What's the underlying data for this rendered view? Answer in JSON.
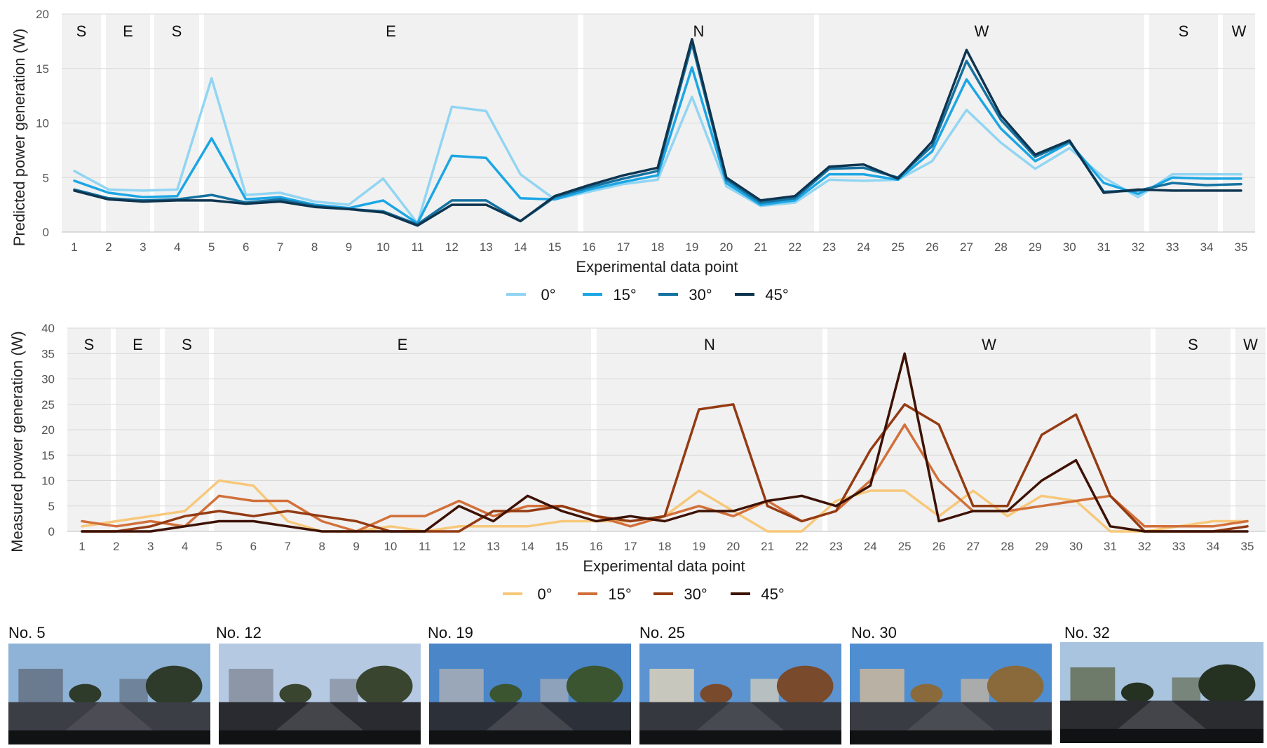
{
  "chart_data": [
    {
      "type": "line",
      "title": "",
      "xlabel": "Experimental data point",
      "ylabel": "Predicted power generation (W)",
      "ylim": [
        0,
        20
      ],
      "yticks": [
        "0",
        "5",
        "10",
        "15",
        "20"
      ],
      "grid": true,
      "legend": "bottom-center",
      "x": [
        "1",
        "2",
        "3",
        "4",
        "5",
        "6",
        "7",
        "8",
        "9",
        "10",
        "11",
        "12",
        "13",
        "14",
        "15",
        "16",
        "17",
        "18",
        "19",
        "20",
        "21",
        "22",
        "23",
        "24",
        "25",
        "26",
        "27",
        "28",
        "29",
        "30",
        "31",
        "32",
        "33",
        "34",
        "35"
      ],
      "series": [
        {
          "name": "0°",
          "color": "#92d5f3",
          "values": [
            5.6,
            3.9,
            3.8,
            3.9,
            14.1,
            3.4,
            3.6,
            2.8,
            2.5,
            4.9,
            0.8,
            11.5,
            11.1,
            5.3,
            3.0,
            3.7,
            4.4,
            4.8,
            12.4,
            4.2,
            2.4,
            2.7,
            4.8,
            4.7,
            4.8,
            6.5,
            11.2,
            8.2,
            5.8,
            7.7,
            5.0,
            3.2,
            5.3,
            5.3,
            5.3
          ]
        },
        {
          "name": "15°",
          "color": "#1ca6e4",
          "values": [
            4.7,
            3.6,
            3.2,
            3.3,
            8.6,
            3.0,
            3.2,
            2.5,
            2.2,
            2.9,
            0.8,
            7.0,
            6.8,
            3.1,
            3.0,
            3.9,
            4.6,
            5.2,
            15.1,
            4.5,
            2.5,
            2.9,
            5.3,
            5.3,
            4.8,
            7.4,
            14.0,
            9.5,
            6.5,
            8.2,
            4.5,
            3.5,
            5.0,
            4.9,
            4.9
          ]
        },
        {
          "name": "30°",
          "color": "#1572a1",
          "values": [
            3.9,
            3.1,
            2.9,
            3.0,
            3.4,
            2.7,
            3.0,
            2.4,
            2.1,
            1.9,
            0.7,
            2.9,
            2.9,
            1.0,
            3.2,
            4.1,
            4.9,
            5.6,
            17.3,
            4.8,
            2.7,
            3.1,
            5.8,
            5.9,
            5.0,
            7.9,
            15.7,
            10.3,
            6.9,
            8.3,
            3.7,
            3.8,
            4.5,
            4.3,
            4.4
          ]
        },
        {
          "name": "45°",
          "color": "#0e3550",
          "values": [
            3.8,
            3.0,
            2.8,
            2.9,
            2.9,
            2.6,
            2.8,
            2.3,
            2.1,
            1.8,
            0.6,
            2.5,
            2.5,
            1.0,
            3.3,
            4.3,
            5.2,
            5.9,
            17.7,
            5.0,
            2.9,
            3.3,
            6.0,
            6.2,
            4.9,
            8.3,
            16.7,
            10.7,
            7.1,
            8.4,
            3.6,
            3.9,
            3.8,
            3.8,
            3.8
          ]
        }
      ],
      "direction_bands": [
        "S",
        "E",
        "S",
        "E",
        "N",
        "W",
        "S",
        "W"
      ]
    },
    {
      "type": "line",
      "title": "",
      "xlabel": "Experimental data point",
      "ylabel": "Measured power generation (W)",
      "ylim": [
        0,
        40
      ],
      "yticks": [
        "0",
        "5",
        "10",
        "15",
        "20",
        "25",
        "30",
        "35",
        "40"
      ],
      "grid": true,
      "legend": "bottom-center",
      "x": [
        "1",
        "2",
        "3",
        "4",
        "5",
        "6",
        "7",
        "8",
        "9",
        "10",
        "11",
        "12",
        "13",
        "14",
        "15",
        "16",
        "17",
        "18",
        "19",
        "20",
        "21",
        "22",
        "23",
        "24",
        "25",
        "26",
        "27",
        "28",
        "29",
        "30",
        "31",
        "32",
        "33",
        "34",
        "35"
      ],
      "series": [
        {
          "name": "0°",
          "color": "#f7c87a",
          "values": [
            1,
            2,
            3,
            4,
            10,
            9,
            2,
            0,
            0,
            1,
            0,
            1,
            1,
            1,
            2,
            2,
            2,
            3,
            8,
            4,
            0,
            0,
            6,
            8,
            8,
            3,
            8,
            3,
            7,
            6,
            0,
            0,
            1,
            2,
            2
          ]
        },
        {
          "name": "15°",
          "color": "#d2703a",
          "values": [
            2,
            1,
            2,
            1,
            7,
            6,
            6,
            2,
            0,
            3,
            3,
            6,
            3,
            5,
            5,
            3,
            1,
            3,
            5,
            3,
            6,
            2,
            4,
            10,
            21,
            10,
            4,
            4,
            5,
            6,
            7,
            1,
            1,
            1,
            2
          ]
        },
        {
          "name": "30°",
          "color": "#943b13",
          "values": [
            0,
            0,
            1,
            3,
            4,
            3,
            4,
            3,
            2,
            0,
            0,
            0,
            4,
            4,
            5,
            3,
            2,
            3,
            24,
            25,
            5,
            2,
            4,
            16,
            25,
            21,
            5,
            5,
            19,
            23,
            7,
            0,
            0,
            0,
            1
          ]
        },
        {
          "name": "45°",
          "color": "#3d1205",
          "values": [
            0,
            0,
            0,
            1,
            2,
            2,
            1,
            0,
            0,
            0,
            0,
            5,
            2,
            7,
            4,
            2,
            3,
            2,
            4,
            4,
            6,
            7,
            5,
            9,
            35,
            2,
            4,
            4,
            10,
            14,
            1,
            0,
            0,
            0,
            0
          ]
        }
      ],
      "direction_bands": [
        "S",
        "E",
        "S",
        "E",
        "N",
        "W",
        "S",
        "W"
      ]
    }
  ],
  "thumbnails": [
    {
      "label": "No. 5"
    },
    {
      "label": "No. 12"
    },
    {
      "label": "No. 19"
    },
    {
      "label": "No. 25"
    },
    {
      "label": "No. 30"
    },
    {
      "label": "No. 32"
    }
  ]
}
